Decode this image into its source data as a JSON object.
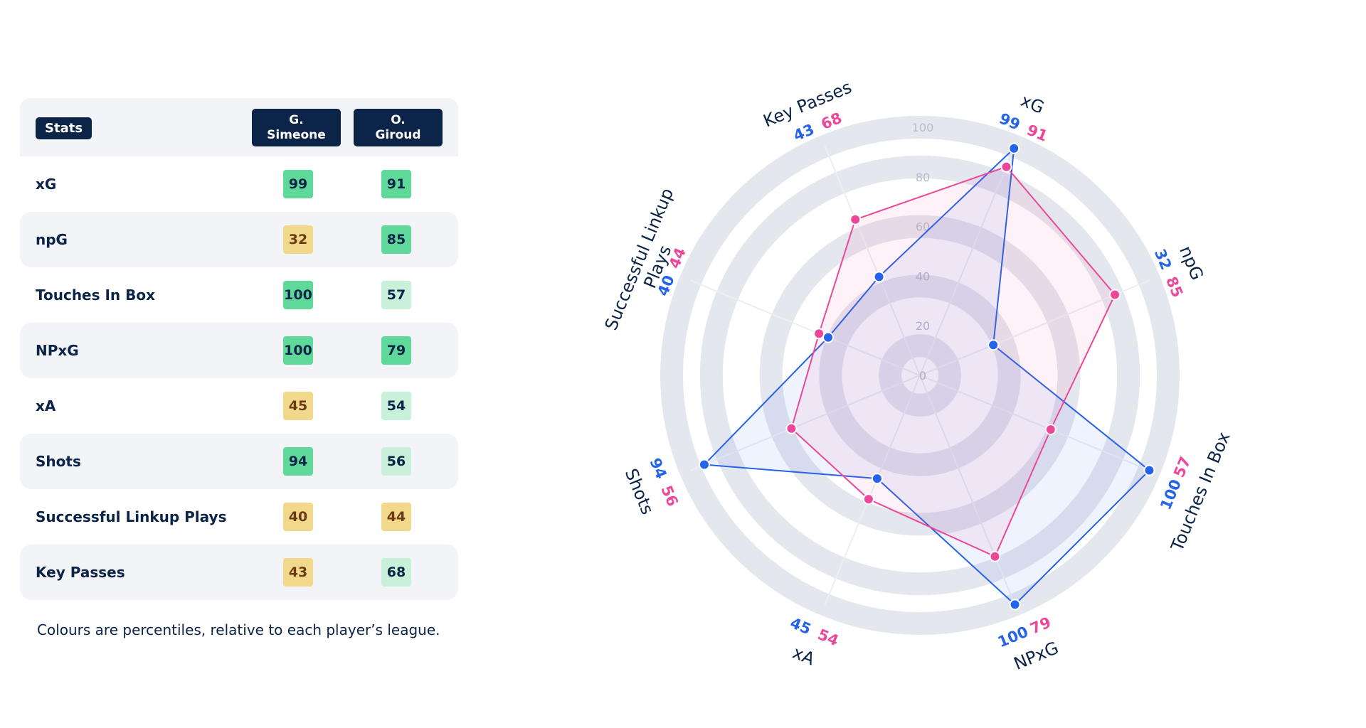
{
  "table": {
    "header": {
      "stats_label": "Stats",
      "player1": [
        "G.",
        "Simeone"
      ],
      "player2": [
        "O.",
        "Giroud"
      ]
    },
    "rows": [
      {
        "label": "xG",
        "p1": 99,
        "p2": 91,
        "p1_tier": "high",
        "p2_tier": "high"
      },
      {
        "label": "npG",
        "p1": 32,
        "p2": 85,
        "p1_tier": "mid",
        "p2_tier": "high"
      },
      {
        "label": "Touches In Box",
        "p1": 100,
        "p2": 57,
        "p1_tier": "high",
        "p2_tier": "light"
      },
      {
        "label": "NPxG",
        "p1": 100,
        "p2": 79,
        "p1_tier": "high",
        "p2_tier": "high"
      },
      {
        "label": "xA",
        "p1": 45,
        "p2": 54,
        "p1_tier": "mid",
        "p2_tier": "light"
      },
      {
        "label": "Shots",
        "p1": 94,
        "p2": 56,
        "p1_tier": "high",
        "p2_tier": "light"
      },
      {
        "label": "Successful Linkup Plays",
        "p1": 40,
        "p2": 44,
        "p1_tier": "mid",
        "p2_tier": "mid"
      },
      {
        "label": "Key Passes",
        "p1": 43,
        "p2": 68,
        "p1_tier": "mid",
        "p2_tier": "light"
      }
    ],
    "footnote": "Colours are percentiles, relative to each player’s league."
  },
  "chart_data": {
    "type": "radar",
    "axes": [
      "xG",
      "npG",
      "Touches In Box",
      "NPxG",
      "xA",
      "Shots",
      "Successful Linkup Plays",
      "Key Passes"
    ],
    "axis_display": [
      [
        "xG"
      ],
      [
        "npG"
      ],
      [
        "Touches In Box"
      ],
      [
        "NPxG"
      ],
      [
        "xA"
      ],
      [
        "Shots"
      ],
      [
        "Successful Linkup",
        "Plays"
      ],
      [
        "Key Passes"
      ]
    ],
    "series": [
      {
        "name": "G. Simeone",
        "color": "#2563eb",
        "values": [
          99,
          32,
          100,
          100,
          45,
          94,
          40,
          43
        ]
      },
      {
        "name": "O. Giroud",
        "color": "#ec4899",
        "values": [
          91,
          85,
          57,
          79,
          54,
          56,
          44,
          68
        ]
      }
    ],
    "range": [
      0,
      100
    ],
    "ticks": [
      0,
      20,
      40,
      60,
      80,
      100
    ]
  },
  "colors": {
    "navy": "#0b2447",
    "tier_high": "#5fd99a",
    "tier_mid": "#f1d88a",
    "tier_light": "#c9f0d8",
    "ring": "#e6e8ef",
    "row_alt": "#f3f4f8"
  }
}
